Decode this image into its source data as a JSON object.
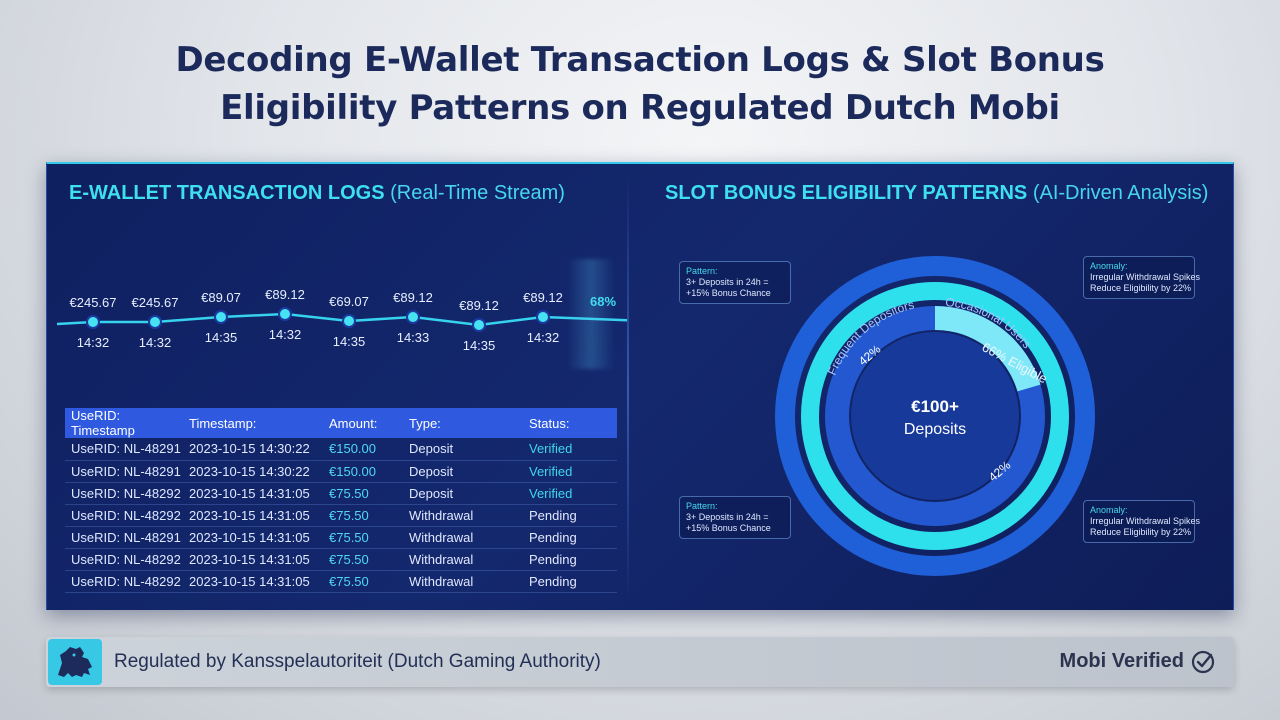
{
  "page": {
    "title_line1": "Decoding E-Wallet Transaction Logs & Slot Bonus",
    "title_line2": "Eligibility Patterns on Regulated Dutch Mobi"
  },
  "left_panel": {
    "heading": "E-WALLET TRANSACTION LOGS",
    "heading_sub": "(Real-Time Stream)",
    "stream": {
      "points": [
        {
          "value": "€245.67",
          "time": "14:32"
        },
        {
          "value": "€245.67",
          "time": "14:32"
        },
        {
          "value": "€89.07",
          "time": "14:35"
        },
        {
          "value": "€89.12",
          "time": "14:32"
        },
        {
          "value": "€69.07",
          "time": "14:35"
        },
        {
          "value": "€89.12",
          "time": "14:33"
        },
        {
          "value": "€89.12",
          "time": "14:35"
        },
        {
          "value": "€89.12",
          "time": "14:32"
        }
      ],
      "trailing_label": "68%"
    },
    "table": {
      "headers": [
        "UseRID: Timestamp",
        "Timestamp:",
        "Amount:",
        "Type:",
        "Status:"
      ],
      "rows": [
        [
          "UseRID: NL-48291",
          "2023-10-15 14:30:22",
          "€150.00",
          "Deposit",
          "Verified"
        ],
        [
          "UseRID: NL-48291",
          "2023-10-15 14:30:22",
          "€150.00",
          "Deposit",
          "Verified"
        ],
        [
          "UseRID: NL-48292",
          "2023-10-15 14:31:05",
          "€75.50",
          "Deposit",
          "Verified"
        ],
        [
          "UseRID: NL-48292",
          "2023-10-15 14:31:05",
          "€75.50",
          "Withdrawal",
          "Pending"
        ],
        [
          "UseRID: NL-48291",
          "2023-10-15 14:31:05",
          "€75.50",
          "Withdrawal",
          "Pending"
        ],
        [
          "UseRID: NL-48292",
          "2023-10-15 14:31:05",
          "€75.50",
          "Withdrawal",
          "Pending"
        ],
        [
          "UseRID: NL-48292",
          "2023-10-15 14:31:05",
          "€75.50",
          "Withdrawal",
          "Pending"
        ]
      ]
    }
  },
  "right_panel": {
    "heading": "SLOT BONUS ELIGIBILITY PATTERNS",
    "heading_sub": "(AI-Driven Analysis)",
    "donut": {
      "center_value": "€100+",
      "center_label": "Deposits",
      "ring_labels": {
        "frequent": "Frequent Depositors",
        "occasional": "Occasional Users",
        "eligible": "66% Eligible",
        "pct_a": "42%",
        "pct_b": "42%"
      },
      "colors": {
        "outer_ring": "#1f5fd8",
        "middle_ring": "#2ee0ec",
        "inner_ring": "#2358d0",
        "highlight": "#7fe8f8"
      }
    },
    "callouts": {
      "pattern_top": {
        "title": "Pattern:",
        "line1": "3+ Deposits in 24h =",
        "line2": "+15% Bonus Chance"
      },
      "pattern_bottom": {
        "title": "Pattern:",
        "line1": "3+ Deposits in 24h =",
        "line2": "+15% Bonus Chance"
      },
      "anomaly_top": {
        "title": "Anomaly:",
        "line1": "Irregular Withdrawal Spikes",
        "line2": "Reduce Eligibility by 22%"
      },
      "anomaly_bottom": {
        "title": "Anomaly:",
        "line1": "Irregular Withdrawal Spikes",
        "line2": "Reduce Eligibility by 22%"
      }
    }
  },
  "footer": {
    "regulator_text": "Regulated by Kansspelautoriteit (Dutch Gaming Authority)",
    "verified_label": "Mobi Verified",
    "icons": {
      "badge": "lion-crest-icon",
      "check": "check-circle-icon"
    }
  }
}
